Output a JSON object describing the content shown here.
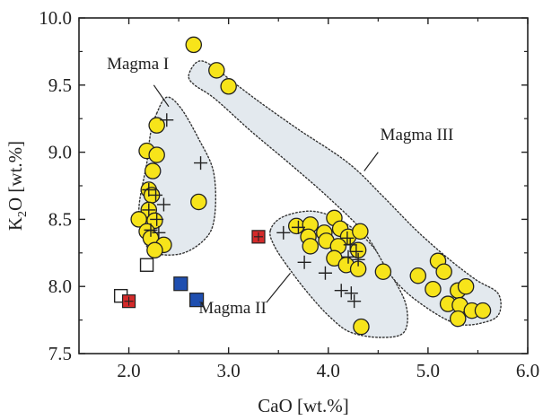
{
  "chart_data": {
    "type": "scatter",
    "xlabel": "CaO [wt.%]",
    "ylabel_main": "K",
    "ylabel_sub": "2",
    "ylabel_rest": "O [wt.%]",
    "xlim": [
      1.5,
      6.0
    ],
    "ylim": [
      7.5,
      10.0
    ],
    "x_ticks": [
      {
        "value": 2.0,
        "label": "2.0"
      },
      {
        "value": 3.0,
        "label": "3.0"
      },
      {
        "value": 4.0,
        "label": "4.0"
      },
      {
        "value": 5.0,
        "label": "5.0"
      },
      {
        "value": 6.0,
        "label": "6.0"
      }
    ],
    "y_ticks": [
      {
        "value": 7.5,
        "label": "7.5"
      },
      {
        "value": 8.0,
        "label": "8.0"
      },
      {
        "value": 8.5,
        "label": "8.5"
      },
      {
        "value": 9.0,
        "label": "9.0"
      },
      {
        "value": 9.5,
        "label": "9.5"
      },
      {
        "value": 10.0,
        "label": "10.0"
      }
    ],
    "grid": false,
    "colors": {
      "circle_fill": "#f7e41a",
      "blue_square": "#1f4fb0",
      "red_square": "#d42a2a",
      "field_fill": "#e3e9ee",
      "ink": "#222222"
    },
    "series": [
      {
        "marker": "circle",
        "points": [
          [
            2.65,
            9.8
          ],
          [
            2.88,
            9.61
          ],
          [
            3.0,
            9.49
          ],
          [
            2.28,
            9.2
          ],
          [
            2.18,
            9.01
          ],
          [
            2.28,
            8.98
          ],
          [
            2.24,
            8.86
          ],
          [
            2.2,
            8.72
          ],
          [
            2.23,
            8.68
          ],
          [
            2.2,
            8.57
          ],
          [
            2.1,
            8.5
          ],
          [
            2.26,
            8.49
          ],
          [
            2.18,
            8.41
          ],
          [
            2.22,
            8.36
          ],
          [
            2.35,
            8.31
          ],
          [
            2.26,
            8.27
          ],
          [
            2.7,
            8.63
          ],
          [
            3.68,
            8.45
          ],
          [
            3.82,
            8.46
          ],
          [
            3.8,
            8.37
          ],
          [
            3.96,
            8.4
          ],
          [
            3.82,
            8.3
          ],
          [
            4.06,
            8.51
          ],
          [
            4.12,
            8.43
          ],
          [
            4.2,
            8.37
          ],
          [
            4.32,
            8.41
          ],
          [
            3.98,
            8.34
          ],
          [
            4.1,
            8.3
          ],
          [
            4.3,
            8.27
          ],
          [
            4.06,
            8.21
          ],
          [
            4.18,
            8.16
          ],
          [
            4.3,
            8.13
          ],
          [
            4.55,
            8.11
          ],
          [
            4.33,
            7.7
          ],
          [
            4.9,
            8.08
          ],
          [
            5.1,
            8.19
          ],
          [
            5.16,
            8.11
          ],
          [
            5.05,
            7.98
          ],
          [
            5.3,
            7.97
          ],
          [
            5.38,
            8.0
          ],
          [
            5.2,
            7.87
          ],
          [
            5.32,
            7.86
          ],
          [
            5.44,
            7.82
          ],
          [
            5.55,
            7.82
          ],
          [
            5.3,
            7.76
          ]
        ]
      },
      {
        "marker": "plus",
        "points": [
          [
            2.38,
            9.24
          ],
          [
            2.72,
            8.92
          ],
          [
            2.2,
            8.72
          ],
          [
            2.27,
            8.68
          ],
          [
            2.35,
            8.61
          ],
          [
            2.2,
            8.57
          ],
          [
            2.28,
            8.5
          ],
          [
            2.22,
            8.42
          ],
          [
            2.3,
            8.4
          ],
          [
            3.55,
            8.4
          ],
          [
            3.7,
            8.44
          ],
          [
            3.76,
            8.18
          ],
          [
            3.97,
            8.1
          ],
          [
            4.19,
            8.36
          ],
          [
            4.22,
            8.31
          ],
          [
            4.28,
            8.26
          ],
          [
            4.2,
            8.22
          ],
          [
            4.3,
            8.2
          ],
          [
            4.13,
            7.97
          ],
          [
            4.23,
            7.95
          ],
          [
            4.26,
            7.89
          ]
        ]
      },
      {
        "marker": "open-square",
        "points": [
          [
            2.18,
            8.16
          ],
          [
            1.92,
            7.93
          ]
        ]
      },
      {
        "marker": "blue-square",
        "points": [
          [
            2.52,
            8.02
          ],
          [
            2.68,
            7.9
          ]
        ]
      },
      {
        "marker": "red-square",
        "points": [
          [
            2.0,
            7.89
          ],
          [
            3.3,
            8.37
          ]
        ]
      }
    ],
    "fields": [
      {
        "name": "Magma I",
        "outline": [
          [
            2.28,
            9.29
          ],
          [
            2.38,
            9.41
          ],
          [
            2.52,
            9.33
          ],
          [
            2.7,
            9.1
          ],
          [
            2.85,
            8.85
          ],
          [
            2.86,
            8.52
          ],
          [
            2.76,
            8.35
          ],
          [
            2.5,
            8.24
          ],
          [
            2.2,
            8.28
          ],
          [
            2.1,
            8.55
          ],
          [
            2.18,
            8.92
          ],
          [
            2.22,
            9.15
          ]
        ]
      },
      {
        "name": "Magma II",
        "outline": [
          [
            3.42,
            8.42
          ],
          [
            3.55,
            8.52
          ],
          [
            3.85,
            8.56
          ],
          [
            4.15,
            8.48
          ],
          [
            4.42,
            8.32
          ],
          [
            4.62,
            8.1
          ],
          [
            4.78,
            7.86
          ],
          [
            4.76,
            7.66
          ],
          [
            4.52,
            7.62
          ],
          [
            4.22,
            7.66
          ],
          [
            4.02,
            7.77
          ],
          [
            3.82,
            7.93
          ],
          [
            3.62,
            8.12
          ],
          [
            3.46,
            8.3
          ]
        ]
      },
      {
        "name": "Magma III",
        "outline": [
          [
            2.6,
            9.57
          ],
          [
            2.68,
            9.67
          ],
          [
            2.8,
            9.66
          ],
          [
            3.05,
            9.52
          ],
          [
            3.3,
            9.38
          ],
          [
            3.7,
            9.17
          ],
          [
            4.2,
            8.92
          ],
          [
            4.55,
            8.67
          ],
          [
            4.88,
            8.42
          ],
          [
            5.2,
            8.21
          ],
          [
            5.48,
            8.05
          ],
          [
            5.7,
            7.95
          ],
          [
            5.72,
            7.81
          ],
          [
            5.6,
            7.74
          ],
          [
            5.3,
            7.72
          ],
          [
            4.95,
            7.86
          ],
          [
            4.65,
            8.06
          ],
          [
            4.38,
            8.38
          ],
          [
            4.02,
            8.65
          ],
          [
            3.62,
            8.91
          ],
          [
            3.22,
            9.16
          ],
          [
            2.86,
            9.4
          ],
          [
            2.66,
            9.5
          ]
        ]
      }
    ],
    "annotations": [
      {
        "text": "Magma I",
        "at": [
          1.78,
          9.62
        ],
        "anchor": "start",
        "pointer": [
          [
            2.25,
            9.5
          ],
          [
            2.4,
            9.34
          ]
        ]
      },
      {
        "text": "Magma III",
        "at": [
          4.52,
          9.09
        ],
        "anchor": "start",
        "pointer": [
          [
            4.5,
            9.0
          ],
          [
            4.36,
            8.86
          ]
        ]
      },
      {
        "text": "Magma II",
        "at": [
          2.7,
          7.8
        ],
        "anchor": "start",
        "pointer": [
          [
            3.38,
            7.88
          ],
          [
            3.62,
            8.1
          ]
        ]
      }
    ]
  }
}
